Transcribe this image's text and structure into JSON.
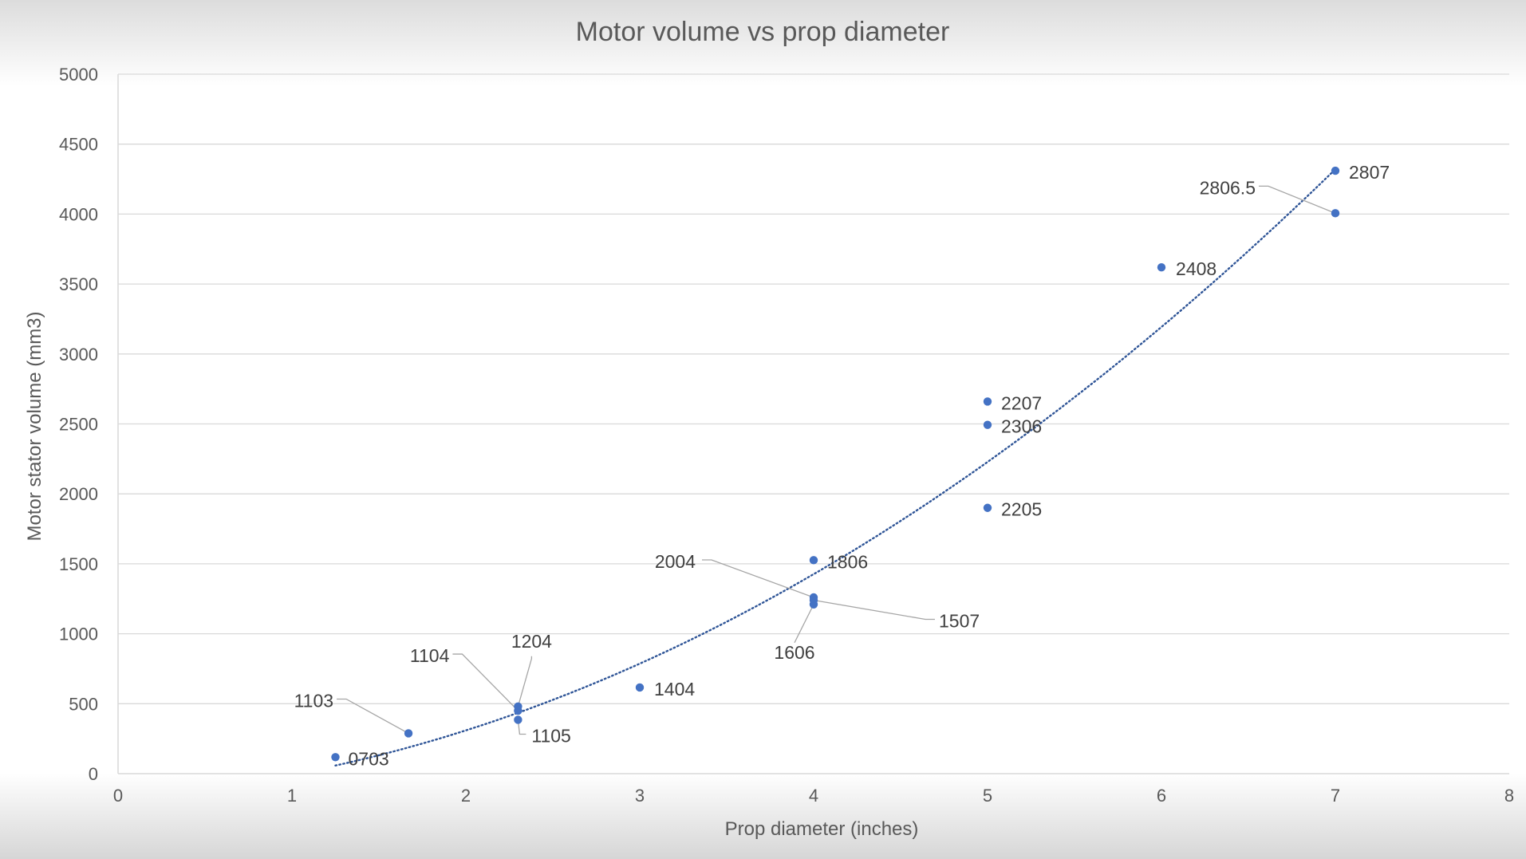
{
  "chart_data": {
    "type": "scatter",
    "title": "Motor volume vs prop diameter",
    "xlabel": "Prop diameter (inches)",
    "ylabel": "Motor stator volume (mm3)",
    "xlim": [
      0,
      8
    ],
    "ylim": [
      0,
      5000
    ],
    "x_ticks": [
      "0",
      "1",
      "2",
      "3",
      "4",
      "5",
      "6",
      "7",
      "8"
    ],
    "y_ticks": [
      "0",
      "500",
      "1000",
      "1500",
      "2000",
      "2500",
      "3000",
      "3500",
      "4000",
      "4500",
      "5000"
    ],
    "grid": "horizontal",
    "legend": "none",
    "trendline": {
      "type": "polynomial",
      "style": "dotted",
      "x_range": [
        1.25,
        7
      ]
    },
    "colors": {
      "marker": "#4472c4",
      "trendline": "#2f5597",
      "gridline": "#d9d9d9",
      "leader_line": "#a6a6a6"
    },
    "points": [
      {
        "label": "0703",
        "x": 1.25,
        "y": 118
      },
      {
        "label": "1103",
        "x": 1.67,
        "y": 288
      },
      {
        "label": "1104",
        "x": 2.3,
        "y": 450
      },
      {
        "label": "1204",
        "x": 2.3,
        "y": 480
      },
      {
        "label": "1105",
        "x": 2.3,
        "y": 385
      },
      {
        "label": "1404",
        "x": 3.0,
        "y": 616
      },
      {
        "label": "1806",
        "x": 4.0,
        "y": 1526
      },
      {
        "label": "2004",
        "x": 4.0,
        "y": 1260
      },
      {
        "label": "1507",
        "x": 4.0,
        "y": 1240
      },
      {
        "label": "1606",
        "x": 4.0,
        "y": 1210
      },
      {
        "label": "2205",
        "x": 5.0,
        "y": 1900
      },
      {
        "label": "2306",
        "x": 5.0,
        "y": 2493
      },
      {
        "label": "2207",
        "x": 5.0,
        "y": 2660
      },
      {
        "label": "2408",
        "x": 6.0,
        "y": 3619
      },
      {
        "label": "2806.5",
        "x": 7.0,
        "y": 4006
      },
      {
        "label": "2807",
        "x": 7.0,
        "y": 4310
      }
    ]
  }
}
